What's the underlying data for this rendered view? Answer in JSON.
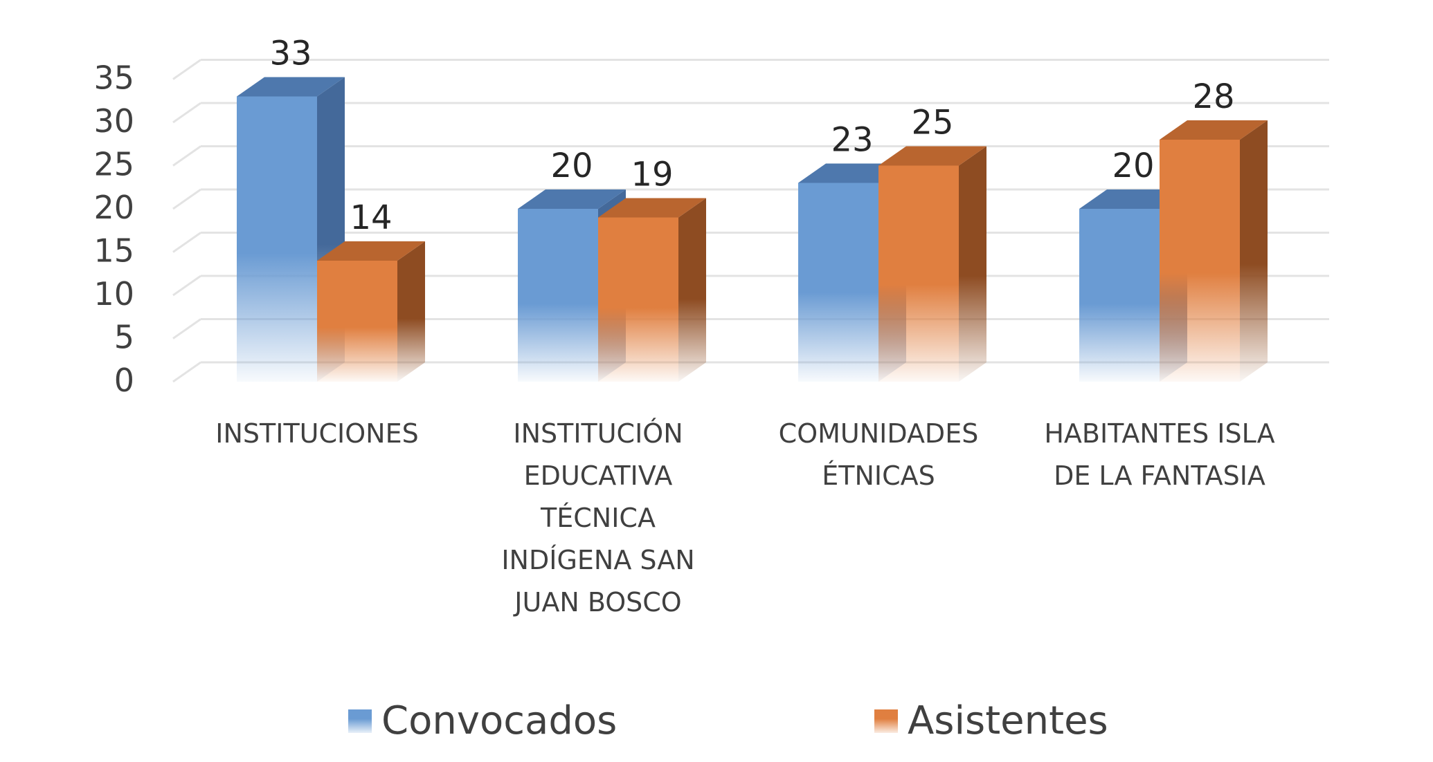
{
  "chart_data": {
    "type": "bar",
    "title": "",
    "xlabel": "",
    "ylabel": "",
    "ylim": [
      0,
      35
    ],
    "yticks": [
      0,
      5,
      10,
      15,
      20,
      25,
      30,
      35
    ],
    "grid": true,
    "three_d": true,
    "legend_position": "bottom",
    "categories": [
      [
        "INSTITUCIONES"
      ],
      [
        "INSTITUCIÓN",
        "EDUCATIVA",
        "TÉCNICA",
        "INDÍGENA SAN",
        "JUAN BOSCO"
      ],
      [
        "COMUNIDADES",
        "ÉTNICAS"
      ],
      [
        "HABITANTES ISLA",
        "DE LA FANTASIA"
      ]
    ],
    "series": [
      {
        "name": "Convocados",
        "values": [
          33,
          20,
          23,
          20
        ],
        "color": "#6a9bd3",
        "side_color": "#44699a",
        "top_color": "#4e78ad"
      },
      {
        "name": "Asistentes",
        "values": [
          14,
          19,
          25,
          28
        ],
        "color": "#e07f40",
        "side_color": "#8e4c22",
        "top_color": "#b9652f"
      }
    ],
    "data_labels": true
  }
}
